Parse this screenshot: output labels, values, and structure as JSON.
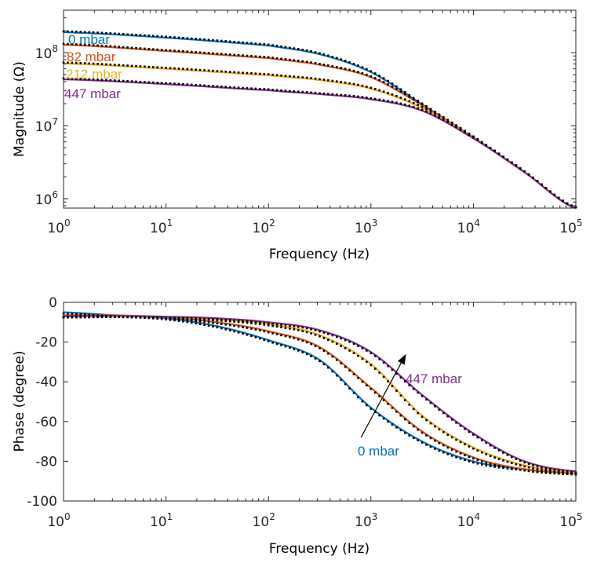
{
  "chart_data": [
    {
      "type": "line",
      "title": "",
      "xlabel": "Frequency (Hz)",
      "ylabel": "Magnitude (Ω)",
      "xscale": "log",
      "yscale": "log",
      "xlim": [
        1,
        100000
      ],
      "ylim": [
        750000,
        350000000
      ],
      "xticks": [
        1,
        10,
        100,
        1000,
        10000,
        100000
      ],
      "xtick_labels": [
        {
          "base": "10",
          "exp": "0"
        },
        {
          "base": "10",
          "exp": "1"
        },
        {
          "base": "10",
          "exp": "2"
        },
        {
          "base": "10",
          "exp": "3"
        },
        {
          "base": "10",
          "exp": "4"
        },
        {
          "base": "10",
          "exp": "5"
        }
      ],
      "yticks": [
        1000000,
        10000000,
        100000000
      ],
      "ytick_labels": [
        {
          "base": "10",
          "exp": "6"
        },
        {
          "base": "10",
          "exp": "7"
        },
        {
          "base": "10",
          "exp": "8"
        }
      ],
      "grid": false,
      "legend": "inline-labels-left",
      "x": [
        1,
        10,
        100,
        316,
        1000,
        3162,
        10000,
        31623,
        100000
      ],
      "series": [
        {
          "name": "0 mbar",
          "color": "#0072BD",
          "values": [
            190000000,
            160000000,
            125000000,
            95000000,
            54000000,
            19500000,
            6900000,
            2300000,
            740000
          ]
        },
        {
          "name": "82 mbar",
          "color": "#D95319",
          "values": [
            128000000,
            105000000,
            84000000,
            68000000,
            46000000,
            19000000,
            6900000,
            2300000,
            740000
          ]
        },
        {
          "name": "212 mbar",
          "color": "#EDB120",
          "values": [
            71000000,
            60000000,
            49000000,
            42000000,
            32000000,
            17500000,
            6800000,
            2300000,
            740000
          ]
        },
        {
          "name": "447 mbar",
          "color": "#7E2F8E",
          "values": [
            43000000,
            37000000,
            30500000,
            27000000,
            23000000,
            16000000,
            6700000,
            2300000,
            740000
          ]
        }
      ],
      "labels": [
        {
          "text": "0 mbar",
          "color": "#0072BD"
        },
        {
          "text": "82 mbar",
          "color": "#D95319"
        },
        {
          "text": "212 mbar",
          "color": "#EDB120"
        },
        {
          "text": "447 mbar",
          "color": "#7E2F8E"
        }
      ],
      "marker_color": "#000000"
    },
    {
      "type": "line",
      "title": "",
      "xlabel": "Frequency (Hz)",
      "ylabel": "Phase (degree)",
      "xscale": "log",
      "yscale": "linear",
      "xlim": [
        1,
        100000
      ],
      "ylim": [
        -100,
        0
      ],
      "xticks": [
        1,
        10,
        100,
        1000,
        10000,
        100000
      ],
      "xtick_labels": [
        {
          "base": "10",
          "exp": "0"
        },
        {
          "base": "10",
          "exp": "1"
        },
        {
          "base": "10",
          "exp": "2"
        },
        {
          "base": "10",
          "exp": "3"
        },
        {
          "base": "10",
          "exp": "4"
        },
        {
          "base": "10",
          "exp": "5"
        }
      ],
      "yticks": [
        0,
        -20,
        -40,
        -60,
        -80,
        -100
      ],
      "ytick_labels": [
        "0",
        "-20",
        "-40",
        "-60",
        "-80",
        "-100"
      ],
      "grid": false,
      "legend": "annotation-arrow",
      "x": [
        1,
        3.16,
        10,
        31.6,
        100,
        316,
        1000,
        3162,
        10000,
        31623,
        100000
      ],
      "series": [
        {
          "name": "0 mbar",
          "color": "#0072BD",
          "values": [
            -5,
            -6.5,
            -8,
            -12,
            -19,
            -29,
            -53,
            -70,
            -80,
            -84,
            -86
          ]
        },
        {
          "name": "82 mbar",
          "color": "#D95319",
          "values": [
            -6.5,
            -6.5,
            -7.5,
            -10,
            -14.5,
            -22.5,
            -43,
            -65,
            -78,
            -84,
            -86
          ]
        },
        {
          "name": "212 mbar",
          "color": "#EDB120",
          "values": [
            -7,
            -6.8,
            -7.3,
            -8.5,
            -11,
            -16.5,
            -31,
            -57,
            -73,
            -82,
            -85.5
          ]
        },
        {
          "name": "447 mbar",
          "color": "#7E2F8E",
          "values": [
            -7,
            -6.8,
            -7.2,
            -8,
            -10,
            -14,
            -25,
            -46.6,
            -66,
            -80,
            -85
          ]
        }
      ],
      "annotations": [
        {
          "text": "447 mbar",
          "color": "#7E2F8E"
        },
        {
          "text": "0 mbar",
          "color": "#0072BD"
        }
      ],
      "arrow": {
        "from": [
          800,
          -68
        ],
        "to": [
          2200,
          -26
        ],
        "color": "#000000"
      },
      "marker_color": "#000000"
    }
  ]
}
